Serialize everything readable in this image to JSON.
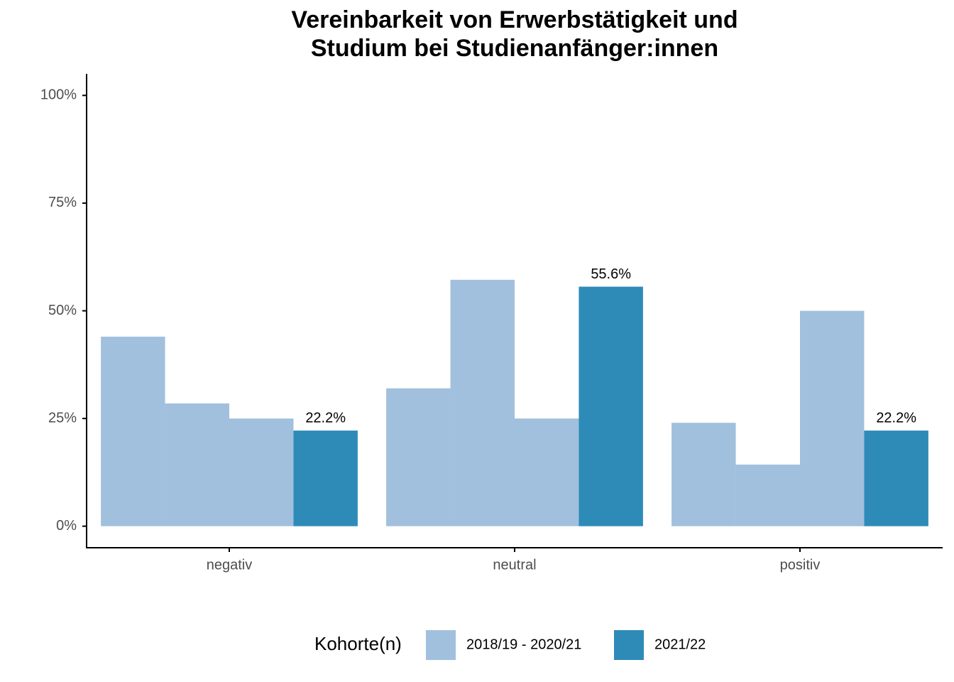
{
  "chart_data": {
    "type": "bar",
    "title": [
      "Vereinbarkeit von Erwerbstätigkeit und",
      "Studium bei Studienanfänger:innen"
    ],
    "categories": [
      "negativ",
      "neutral",
      "positiv"
    ],
    "series": [
      {
        "name": "2018/19 - 2020/21",
        "color": "#a1c0dd",
        "values": [
          [
            44,
            28.5,
            25
          ],
          [
            32,
            57.2,
            25
          ],
          [
            24,
            14.3,
            50
          ]
        ]
      },
      {
        "name": "2021/22",
        "color": "#2e8bb8",
        "values": [
          22.2,
          55.6,
          22.2
        ],
        "value_labels": [
          "22.2%",
          "55.6%",
          "22.2%"
        ]
      }
    ],
    "ylim": [
      -5,
      105
    ],
    "yticks": [
      {
        "value": 0,
        "label": "0%"
      },
      {
        "value": 25,
        "label": "25%"
      },
      {
        "value": 50,
        "label": "50%"
      },
      {
        "value": 75,
        "label": "75%"
      },
      {
        "value": 100,
        "label": "100%"
      }
    ],
    "legend_title": "Kohorte(n)",
    "legend_position": "bottom",
    "grid": false
  }
}
